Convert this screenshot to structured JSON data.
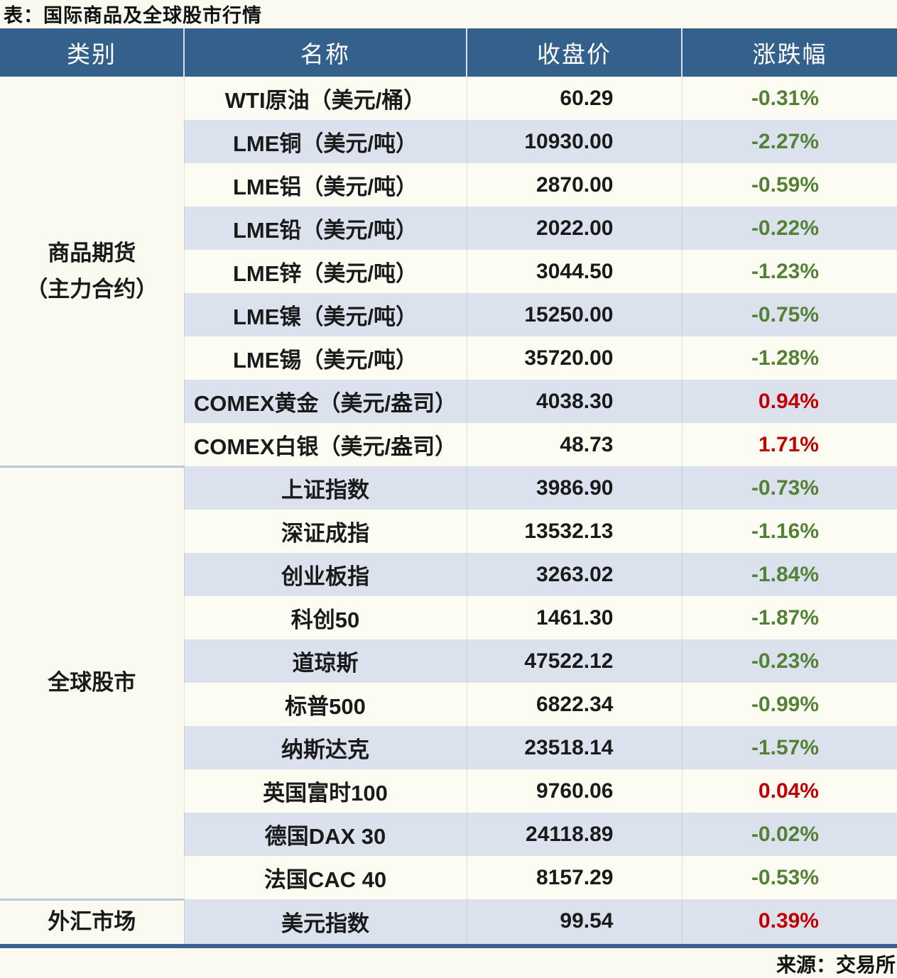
{
  "colors": {
    "header_bg": "#34608c",
    "row_base": "#fdfcf2",
    "row_alt": "#dbe2ee",
    "fall_green": "#538135",
    "rise_red": "#c00000",
    "table_bottom_border": "#3c6292",
    "group_divider": "#bbc7d9",
    "page_bg": "#fbfaf0"
  },
  "chart_data": {
    "type": "table",
    "title": "表：国际商品及全球股市行情",
    "source": "来源：交易所",
    "columns": [
      "类别",
      "名称",
      "收盘价",
      "涨跌幅"
    ],
    "groups": [
      {
        "category": "商品期货\n（主力合约）",
        "rows": [
          {
            "name": "WTI原油（美元/桶）",
            "close": "60.29",
            "change": "-0.31%",
            "direction": "down"
          },
          {
            "name": "LME铜（美元/吨）",
            "close": "10930.00",
            "change": "-2.27%",
            "direction": "down"
          },
          {
            "name": "LME铝（美元/吨）",
            "close": "2870.00",
            "change": "-0.59%",
            "direction": "down"
          },
          {
            "name": "LME铅（美元/吨）",
            "close": "2022.00",
            "change": "-0.22%",
            "direction": "down"
          },
          {
            "name": "LME锌（美元/吨）",
            "close": "3044.50",
            "change": "-1.23%",
            "direction": "down"
          },
          {
            "name": "LME镍（美元/吨）",
            "close": "15250.00",
            "change": "-0.75%",
            "direction": "down"
          },
          {
            "name": "LME锡（美元/吨）",
            "close": "35720.00",
            "change": "-1.28%",
            "direction": "down"
          },
          {
            "name": "COMEX黄金（美元/盎司）",
            "close": "4038.30",
            "change": "0.94%",
            "direction": "up"
          },
          {
            "name": "COMEX白银（美元/盎司）",
            "close": "48.73",
            "change": "1.71%",
            "direction": "up"
          }
        ]
      },
      {
        "category": "全球股市",
        "rows": [
          {
            "name": "上证指数",
            "close": "3986.90",
            "change": "-0.73%",
            "direction": "down"
          },
          {
            "name": "深证成指",
            "close": "13532.13",
            "change": "-1.16%",
            "direction": "down"
          },
          {
            "name": "创业板指",
            "close": "3263.02",
            "change": "-1.84%",
            "direction": "down"
          },
          {
            "name": "科创50",
            "close": "1461.30",
            "change": "-1.87%",
            "direction": "down"
          },
          {
            "name": "道琼斯",
            "close": "47522.12",
            "change": "-0.23%",
            "direction": "down"
          },
          {
            "name": "标普500",
            "close": "6822.34",
            "change": "-0.99%",
            "direction": "down"
          },
          {
            "name": "纳斯达克",
            "close": "23518.14",
            "change": "-1.57%",
            "direction": "down"
          },
          {
            "name": "英国富时100",
            "close": "9760.06",
            "change": "0.04%",
            "direction": "up"
          },
          {
            "name": "德国DAX 30",
            "close": "24118.89",
            "change": "-0.02%",
            "direction": "down"
          },
          {
            "name": "法国CAC 40",
            "close": "8157.29",
            "change": "-0.53%",
            "direction": "down"
          }
        ]
      },
      {
        "category": "外汇市场",
        "rows": [
          {
            "name": "美元指数",
            "close": "99.54",
            "change": "0.39%",
            "direction": "up"
          }
        ]
      }
    ]
  }
}
